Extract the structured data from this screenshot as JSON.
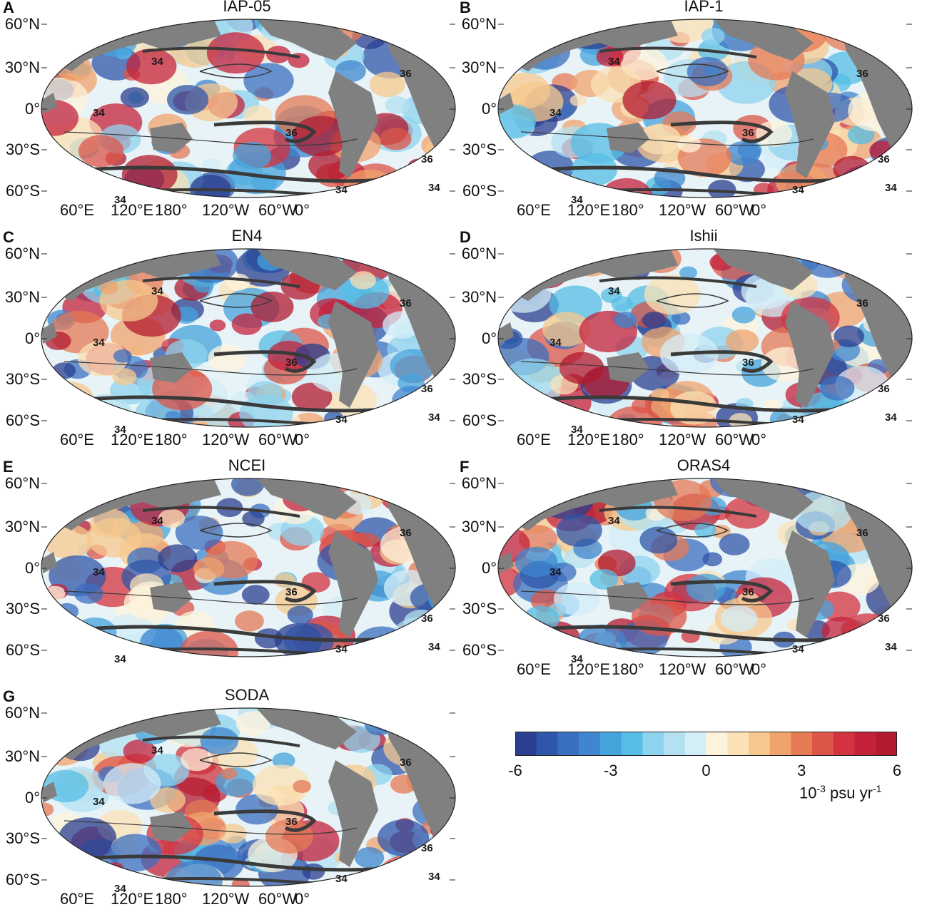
{
  "panels": [
    {
      "letter": "A",
      "title": "IAP-05",
      "lon_labels": true
    },
    {
      "letter": "B",
      "title": "IAP-1",
      "lon_labels": true
    },
    {
      "letter": "C",
      "title": "EN4",
      "lon_labels": true
    },
    {
      "letter": "D",
      "title": "Ishii",
      "lon_labels": true
    },
    {
      "letter": "E",
      "title": "NCEI",
      "lon_labels": false
    },
    {
      "letter": "F",
      "title": "ORAS4",
      "lon_labels": true
    },
    {
      "letter": "G",
      "title": "SODA",
      "lon_labels": true
    }
  ],
  "lat_labels": [
    "60°N",
    "30°N",
    "0°",
    "30°S",
    "60°S"
  ],
  "lon_labels": [
    "60°E",
    "120°E",
    "180°",
    "120°W",
    "60°W",
    "0°"
  ],
  "contour_labels": [
    "34",
    "36",
    "34",
    "36",
    "36",
    "34",
    "34",
    "34"
  ],
  "colorbar": {
    "ticks": [
      "-6",
      "-3",
      "0",
      "3",
      "6"
    ],
    "unit_base": "10",
    "unit_exp1": "-3",
    "unit_mid": " psu yr",
    "unit_exp2": "-1",
    "colors": [
      "#2a3f8f",
      "#2f56a8",
      "#3b6fbf",
      "#3f86cf",
      "#45a3dc",
      "#56bde6",
      "#8dd3ee",
      "#b4e1f2",
      "#d4eef8",
      "#fdf3dc",
      "#fbe2b6",
      "#f7c88e",
      "#f0a36c",
      "#e67a55",
      "#dc5548",
      "#d3333f",
      "#c4213b",
      "#b11a2f"
    ]
  },
  "land_color": "#808080",
  "panel_positions_note": ""
}
